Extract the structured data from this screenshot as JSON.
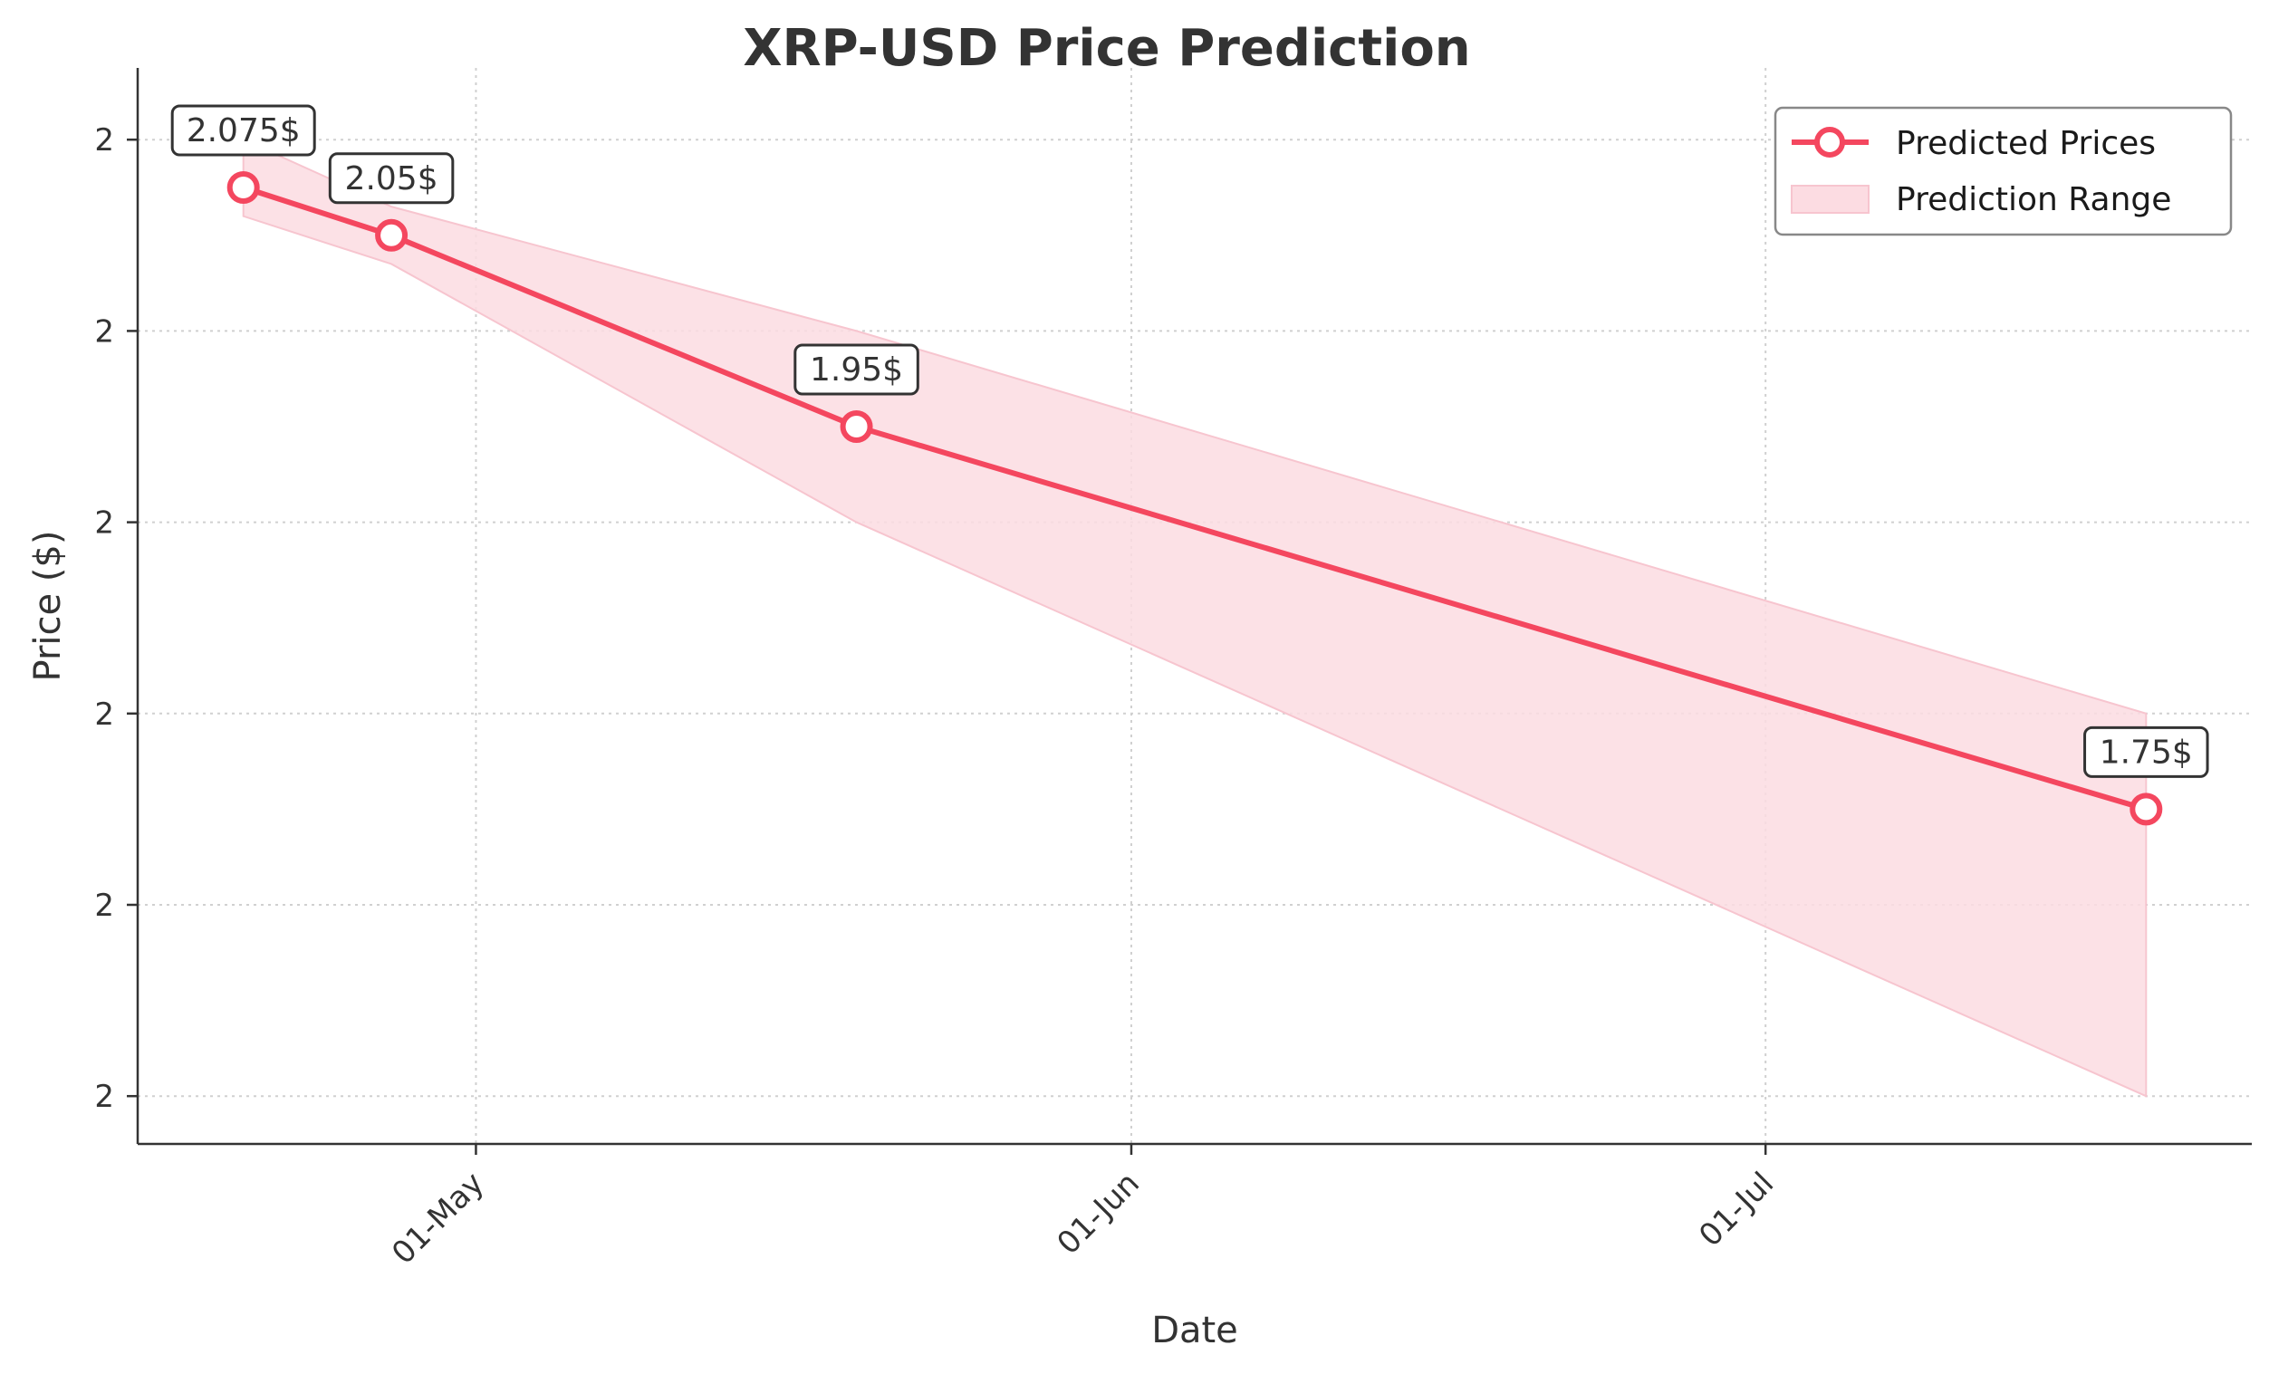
{
  "chart_data": {
    "type": "line",
    "title": "XRP-USD Price Prediction",
    "xlabel": "Date",
    "ylabel": "Price ($)",
    "x_ticks": [
      {
        "date": "2025-05-01",
        "label": "01-May"
      },
      {
        "date": "2025-06-01",
        "label": "01-Jun"
      },
      {
        "date": "2025-07-01",
        "label": "01-Jul"
      }
    ],
    "y_ticks": [
      {
        "value": 1.6,
        "label": "2"
      },
      {
        "value": 1.7,
        "label": "2"
      },
      {
        "value": 1.8,
        "label": "2"
      },
      {
        "value": 1.9,
        "label": "2"
      },
      {
        "value": 2.0,
        "label": "2"
      },
      {
        "value": 2.1,
        "label": "2"
      }
    ],
    "xlim": [
      "2025-04-15",
      "2025-07-24"
    ],
    "ylim": [
      1.575,
      2.1375
    ],
    "grid": true,
    "legend_position": "top-right",
    "colors": {
      "line": "#f4475f",
      "band": "#fcdce2",
      "band_edge": "#f7c5cf"
    },
    "series": [
      {
        "name": "Predicted Prices",
        "points": [
          {
            "x": "2025-04-20",
            "y": 2.075,
            "label": "2.075$"
          },
          {
            "x": "2025-04-27",
            "y": 2.05,
            "label": "2.05$"
          },
          {
            "x": "2025-05-19",
            "y": 1.95,
            "label": "1.95$"
          },
          {
            "x": "2025-07-19",
            "y": 1.75,
            "label": "1.75$"
          }
        ]
      }
    ],
    "range": {
      "name": "Prediction Range",
      "points": [
        {
          "x": "2025-04-20",
          "low": 2.06,
          "high": 2.1
        },
        {
          "x": "2025-04-27",
          "low": 2.035,
          "high": 2.065
        },
        {
          "x": "2025-05-19",
          "low": 1.9,
          "high": 2.0
        },
        {
          "x": "2025-07-19",
          "low": 1.6,
          "high": 1.8
        }
      ]
    }
  }
}
